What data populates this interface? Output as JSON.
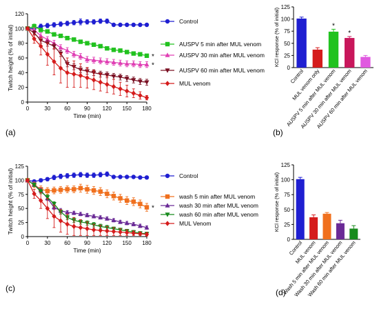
{
  "panel_labels": [
    "(a)",
    "(b)",
    "(c)",
    "(d)"
  ],
  "chart_data": [
    {
      "panel": "a",
      "type": "line",
      "xlabel": "Time (min)",
      "ylabel": "Twitch height (% of initial)",
      "xlim": [
        0,
        180
      ],
      "ylim": [
        0,
        120
      ],
      "xticks": [
        "0",
        "30",
        "60",
        "90",
        "120",
        "150",
        "180"
      ],
      "yticks": [
        "0",
        "20",
        "40",
        "60",
        "80",
        "100",
        "120"
      ],
      "x": [
        0,
        10,
        20,
        30,
        40,
        50,
        60,
        70,
        80,
        90,
        100,
        110,
        120,
        130,
        140,
        150,
        160,
        170,
        180
      ],
      "series": [
        {
          "name": "Control",
          "color": "#1f1fd1",
          "marker": "circle",
          "values": [
            100,
            100,
            103,
            104,
            105,
            106,
            107,
            108,
            109,
            109,
            109,
            110,
            110,
            105,
            105,
            105,
            105,
            105,
            105
          ],
          "err": [
            0,
            2,
            3,
            3,
            3,
            3,
            3,
            3,
            4,
            3,
            3,
            3,
            3,
            2,
            2,
            2,
            2,
            2,
            2
          ]
        },
        {
          "name": "AUSPV 5 min after MUL venom",
          "color": "#21c21f",
          "marker": "square",
          "values": [
            100,
            103,
            98,
            96,
            92,
            90,
            87,
            85,
            82,
            80,
            78,
            76,
            73,
            71,
            70,
            68,
            66,
            65,
            63
          ],
          "err": [
            0,
            3,
            2,
            2,
            2,
            2,
            2,
            2,
            2,
            2,
            2,
            2,
            2,
            2,
            2,
            2,
            2,
            2,
            2
          ]
        },
        {
          "name": "AUSPV 30 min after MUL venom",
          "color": "#e03fb4",
          "marker": "triangle-up",
          "values": [
            100,
            98,
            90,
            85,
            80,
            74,
            70,
            65,
            62,
            58,
            57,
            56,
            55,
            54,
            53,
            52,
            52,
            51,
            51
          ],
          "err": [
            0,
            3,
            4,
            4,
            4,
            4,
            4,
            4,
            4,
            4,
            4,
            4,
            4,
            4,
            4,
            4,
            4,
            4,
            4
          ]
        },
        {
          "name": "AUSPV 60 min after MUL venom",
          "color": "#7a1023",
          "marker": "triangle-down",
          "values": [
            100,
            94,
            84,
            80,
            76,
            66,
            52,
            48,
            44,
            42,
            40,
            38,
            37,
            35,
            34,
            32,
            30,
            28,
            27
          ],
          "err": [
            0,
            3,
            4,
            4,
            4,
            4,
            4,
            4,
            4,
            4,
            4,
            4,
            4,
            4,
            4,
            4,
            4,
            4,
            4
          ]
        },
        {
          "name": "MUL venom",
          "color": "#d51c1c",
          "marker": "diamond",
          "values": [
            100,
            86,
            76,
            65,
            55,
            46,
            40,
            38,
            36,
            33,
            30,
            27,
            24,
            21,
            18,
            15,
            12,
            9,
            6
          ],
          "err": [
            0,
            6,
            12,
            15,
            18,
            20,
            20,
            18,
            16,
            14,
            13,
            12,
            11,
            10,
            9,
            8,
            6,
            5,
            3
          ]
        }
      ],
      "annotations": [
        "*",
        "*"
      ]
    },
    {
      "panel": "b",
      "type": "bar",
      "ylabel": "KCl response (% of initial)",
      "ylim": [
        0,
        125
      ],
      "yticks": [
        "0",
        "25",
        "50",
        "75",
        "100",
        "125"
      ],
      "categories": [
        "Control",
        "MUL venom only",
        "AUSPV 5 min after MUL venom",
        "AUSPV 30 min after MUL venom",
        "AUSPV 60 min after MUL venom"
      ],
      "values": [
        101,
        37,
        74,
        61,
        22
      ],
      "err": [
        3,
        4,
        5,
        3,
        3
      ],
      "colors": [
        "#1f1fd1",
        "#d51c1c",
        "#21c21f",
        "#c8175b",
        "#e05ae0"
      ],
      "significance": [
        "",
        "",
        "*",
        "*",
        ""
      ]
    },
    {
      "panel": "c",
      "type": "line",
      "xlabel": "Time (min)",
      "ylabel": "Twitch height (% of initial)",
      "xlim": [
        0,
        180
      ],
      "ylim": [
        0,
        125
      ],
      "xticks": [
        "0",
        "30",
        "60",
        "90",
        "120",
        "150",
        "180"
      ],
      "yticks": [
        "0",
        "25",
        "50",
        "75",
        "100",
        "125"
      ],
      "x": [
        0,
        10,
        20,
        30,
        40,
        50,
        60,
        70,
        80,
        90,
        100,
        110,
        120,
        130,
        140,
        150,
        160,
        170,
        180
      ],
      "series": [
        {
          "name": "Control",
          "color": "#1f1fd1",
          "marker": "circle",
          "values": [
            100,
            98,
            100,
            102,
            105,
            107,
            108,
            109,
            110,
            109,
            109,
            110,
            111,
            106,
            106,
            106,
            106,
            105,
            105
          ],
          "err": [
            0,
            2,
            3,
            3,
            4,
            4,
            4,
            4,
            4,
            4,
            4,
            4,
            4,
            2,
            2,
            2,
            2,
            2,
            2
          ]
        },
        {
          "name": "wash 5 min after MUL venom",
          "color": "#f0701e",
          "marker": "square",
          "values": [
            100,
            92,
            84,
            81,
            82,
            83,
            84,
            84,
            86,
            84,
            82,
            80,
            76,
            72,
            68,
            64,
            62,
            58,
            52
          ],
          "err": [
            0,
            5,
            6,
            6,
            6,
            6,
            6,
            6,
            7,
            7,
            7,
            7,
            7,
            7,
            7,
            7,
            7,
            7,
            7
          ]
        },
        {
          "name": "wash 30 min after MUL venom",
          "color": "#6a2a96",
          "marker": "triangle-up",
          "values": [
            100,
            92,
            82,
            68,
            52,
            46,
            43,
            42,
            40,
            38,
            36,
            34,
            32,
            29,
            26,
            24,
            22,
            19,
            16
          ],
          "err": [
            0,
            3,
            4,
            4,
            4,
            4,
            3,
            3,
            3,
            3,
            3,
            3,
            3,
            3,
            3,
            3,
            3,
            3,
            3
          ]
        },
        {
          "name": "wash 60 min after MUL venom",
          "color": "#188a1d",
          "marker": "triangle-down",
          "values": [
            100,
            92,
            80,
            70,
            58,
            44,
            34,
            29,
            26,
            24,
            21,
            18,
            16,
            14,
            12,
            10,
            8,
            6,
            5
          ],
          "err": [
            0,
            3,
            4,
            4,
            4,
            4,
            4,
            4,
            4,
            4,
            4,
            4,
            4,
            3,
            3,
            3,
            3,
            3,
            3
          ]
        },
        {
          "name": "MUL Venom",
          "color": "#d51c1c",
          "marker": "diamond",
          "values": [
            100,
            76,
            64,
            50,
            36,
            28,
            22,
            18,
            16,
            14,
            12,
            11,
            10,
            9,
            8,
            7,
            6,
            5,
            4
          ],
          "err": [
            0,
            8,
            14,
            18,
            20,
            20,
            18,
            16,
            14,
            12,
            10,
            9,
            8,
            7,
            6,
            5,
            4,
            3,
            3
          ]
        }
      ],
      "annotations": [
        "*"
      ]
    },
    {
      "panel": "d",
      "type": "bar",
      "ylabel": "KCl response (% of initial)",
      "ylim": [
        0,
        125
      ],
      "yticks": [
        "0",
        "25",
        "50",
        "75",
        "100",
        "125"
      ],
      "categories": [
        "Control",
        "MUL venom",
        "Wash 5 min after MUL venom",
        "Wash 30 min after MUL venom",
        "Wash 60 min after MUL venom"
      ],
      "values": [
        101,
        37,
        43,
        27,
        18
      ],
      "err": [
        3,
        4,
        2,
        5,
        5
      ],
      "colors": [
        "#1f1fd1",
        "#d51c1c",
        "#f0701e",
        "#6a2a96",
        "#188a1d"
      ],
      "significance": [
        "",
        "",
        "",
        "",
        ""
      ]
    }
  ]
}
